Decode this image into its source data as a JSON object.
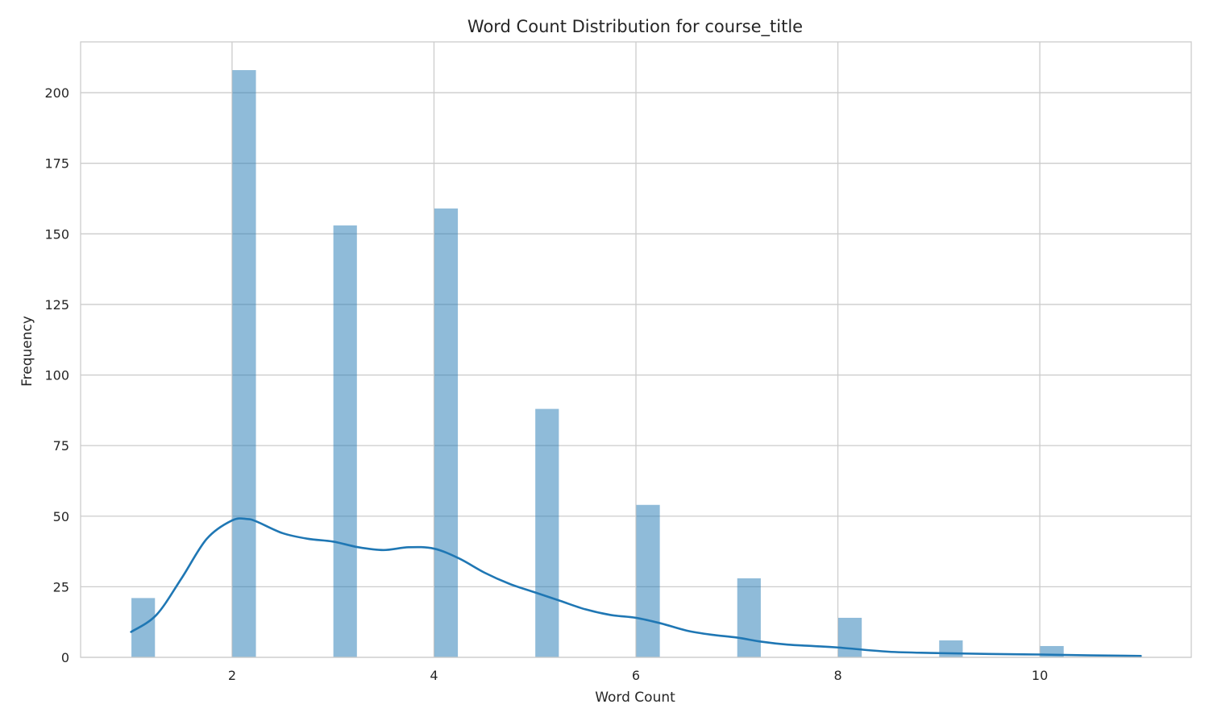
{
  "chart_data": {
    "type": "bar",
    "title": "Word Count Distribution for course_title",
    "xlabel": "Word Count",
    "ylabel": "Frequency",
    "xlim": [
      0.5,
      11.5
    ],
    "ylim": [
      0,
      218
    ],
    "x_ticks": [
      2,
      4,
      6,
      8,
      10
    ],
    "y_ticks": [
      0,
      25,
      50,
      75,
      100,
      125,
      150,
      175,
      200
    ],
    "bar_width": 0.233,
    "grid": true,
    "bars": [
      {
        "x": 1,
        "value": 21
      },
      {
        "x": 2,
        "value": 208
      },
      {
        "x": 3,
        "value": 153
      },
      {
        "x": 4,
        "value": 159
      },
      {
        "x": 5,
        "value": 88
      },
      {
        "x": 6,
        "value": 54
      },
      {
        "x": 7,
        "value": 28
      },
      {
        "x": 8,
        "value": 14
      },
      {
        "x": 9,
        "value": 6
      },
      {
        "x": 10,
        "value": 4
      }
    ],
    "kde": {
      "x": [
        1.0,
        1.25,
        1.5,
        1.75,
        2.0,
        2.15,
        2.25,
        2.5,
        2.75,
        3.0,
        3.25,
        3.5,
        3.75,
        4.0,
        4.25,
        4.5,
        4.75,
        5.0,
        5.25,
        5.5,
        5.75,
        6.0,
        6.25,
        6.5,
        6.75,
        7.0,
        7.25,
        7.5,
        7.75,
        8.0,
        8.5,
        9.0,
        9.5,
        10.0,
        10.5,
        11.0
      ],
      "y": [
        9,
        15,
        28,
        42,
        48.5,
        49,
        48,
        44,
        42,
        41,
        39,
        38,
        39,
        38.5,
        35,
        30,
        26,
        23,
        20,
        17,
        15,
        14,
        12,
        9.5,
        8,
        7,
        5.5,
        4.5,
        4,
        3.5,
        2,
        1.5,
        1.2,
        1,
        0.7,
        0.5
      ]
    }
  }
}
